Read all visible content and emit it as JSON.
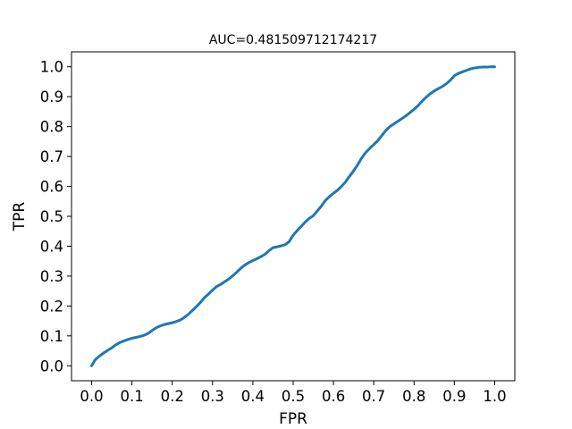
{
  "chart_data": {
    "type": "line",
    "title": "AUC=0.481509712174217",
    "xlabel": "FPR",
    "ylabel": "TPR",
    "xlim": [
      -0.05,
      1.05
    ],
    "ylim": [
      -0.05,
      1.05
    ],
    "xticks": [
      0.0,
      0.1,
      0.2,
      0.3,
      0.4,
      0.5,
      0.6,
      0.7,
      0.8,
      0.9,
      1.0
    ],
    "yticks": [
      0.0,
      0.1,
      0.2,
      0.3,
      0.4,
      0.5,
      0.6,
      0.7,
      0.8,
      0.9,
      1.0
    ],
    "xtick_labels": [
      "0.0",
      "0.1",
      "0.2",
      "0.3",
      "0.4",
      "0.5",
      "0.6",
      "0.7",
      "0.8",
      "0.9",
      "1.0"
    ],
    "ytick_labels": [
      "0.0",
      "0.1",
      "0.2",
      "0.3",
      "0.4",
      "0.5",
      "0.6",
      "0.7",
      "0.8",
      "0.9",
      "1.0"
    ],
    "grid": false,
    "legend": "none",
    "line_color": "#1f77b4",
    "series": [
      {
        "x": [
          0.0,
          0.005,
          0.01,
          0.02,
          0.03,
          0.04,
          0.05,
          0.06,
          0.07,
          0.08,
          0.09,
          0.1,
          0.11,
          0.12,
          0.13,
          0.14,
          0.15,
          0.16,
          0.17,
          0.18,
          0.19,
          0.2,
          0.21,
          0.22,
          0.23,
          0.24,
          0.25,
          0.26,
          0.27,
          0.28,
          0.29,
          0.3,
          0.31,
          0.32,
          0.33,
          0.34,
          0.35,
          0.36,
          0.37,
          0.38,
          0.39,
          0.4,
          0.41,
          0.42,
          0.43,
          0.44,
          0.45,
          0.46,
          0.47,
          0.48,
          0.49,
          0.5,
          0.51,
          0.52,
          0.53,
          0.54,
          0.55,
          0.56,
          0.57,
          0.58,
          0.59,
          0.6,
          0.61,
          0.62,
          0.63,
          0.64,
          0.65,
          0.66,
          0.67,
          0.68,
          0.69,
          0.7,
          0.71,
          0.72,
          0.73,
          0.74,
          0.75,
          0.76,
          0.77,
          0.78,
          0.79,
          0.8,
          0.81,
          0.82,
          0.83,
          0.84,
          0.85,
          0.86,
          0.87,
          0.88,
          0.89,
          0.9,
          0.91,
          0.92,
          0.93,
          0.94,
          0.95,
          0.96,
          0.97,
          0.98,
          0.99,
          1.0
        ],
        "y": [
          0.0,
          0.012,
          0.022,
          0.033,
          0.043,
          0.052,
          0.06,
          0.07,
          0.078,
          0.083,
          0.088,
          0.092,
          0.095,
          0.098,
          0.102,
          0.108,
          0.118,
          0.127,
          0.133,
          0.138,
          0.141,
          0.144,
          0.148,
          0.153,
          0.162,
          0.172,
          0.185,
          0.198,
          0.212,
          0.228,
          0.24,
          0.253,
          0.265,
          0.272,
          0.281,
          0.29,
          0.301,
          0.313,
          0.326,
          0.337,
          0.345,
          0.352,
          0.358,
          0.365,
          0.373,
          0.385,
          0.395,
          0.398,
          0.401,
          0.405,
          0.415,
          0.437,
          0.452,
          0.466,
          0.481,
          0.493,
          0.502,
          0.518,
          0.534,
          0.553,
          0.566,
          0.577,
          0.587,
          0.6,
          0.615,
          0.634,
          0.652,
          0.672,
          0.695,
          0.713,
          0.727,
          0.74,
          0.753,
          0.77,
          0.787,
          0.8,
          0.809,
          0.818,
          0.827,
          0.836,
          0.847,
          0.858,
          0.87,
          0.885,
          0.898,
          0.91,
          0.919,
          0.927,
          0.934,
          0.943,
          0.955,
          0.97,
          0.978,
          0.983,
          0.988,
          0.993,
          0.996,
          0.998,
          0.999,
          0.999,
          1.0,
          1.0
        ]
      }
    ]
  }
}
